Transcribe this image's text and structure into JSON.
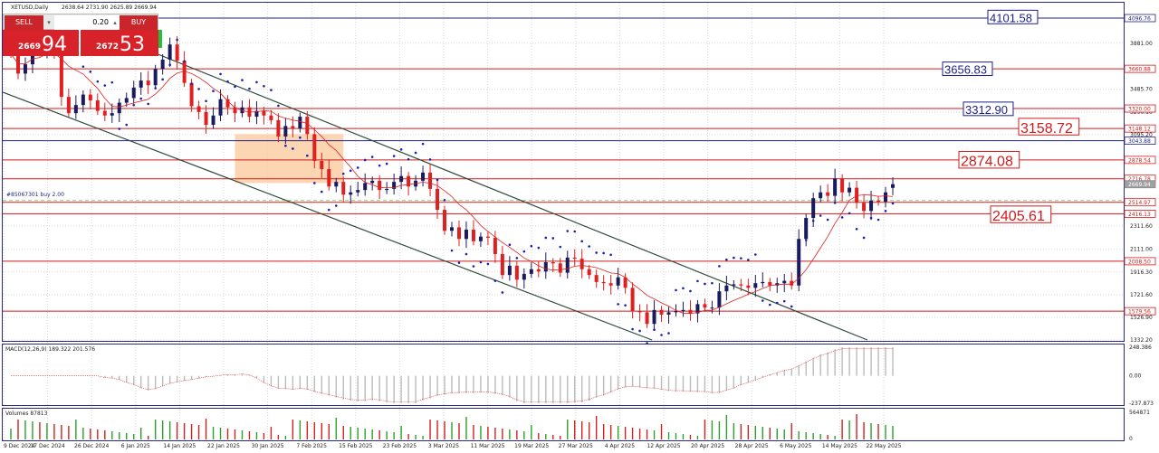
{
  "header": {
    "title": "XETUSD,Daily",
    "ohlc": "2638.64 2731.90 2625.89 2669.94",
    "order_label": "#85067301 buy 2.00"
  },
  "trade_panel": {
    "sell_label": "SELL",
    "buy_label": "BUY",
    "volume": "0.20",
    "sell_small": "2669",
    "sell_big": "94",
    "buy_small": "2672",
    "buy_big": "53",
    "down_arrow": "▾",
    "up_arrow": "▴"
  },
  "colors": {
    "bull": "#1a1a5e",
    "bear": "#e02020",
    "sar": "#1a1fb0",
    "ma": "#e02020",
    "channel": "#2e4c3a",
    "red_line": "#d21a1a",
    "navy_line": "#1c1f8a",
    "zone": "#fbc79a",
    "macd_hist": "#bbbbbb"
  },
  "price_axis": {
    "ticks": [
      "4096.76",
      "3881.00",
      "3485.70",
      "3290.10",
      "3095.20",
      "2311.60",
      "2111.00",
      "1916.30",
      "1721.60",
      "1526.90",
      "1332.20"
    ],
    "level_tags": [
      {
        "label": "4096.76",
        "kind": "navy",
        "price": 4096.76
      },
      {
        "label": "3660.88",
        "kind": "red",
        "price": 3660.88
      },
      {
        "label": "3320.00",
        "kind": "red",
        "price": 3320.0
      },
      {
        "label": "3148.12",
        "kind": "red",
        "price": 3148.12
      },
      {
        "label": "3043.88",
        "kind": "navy",
        "price": 3043.88
      },
      {
        "label": "2878.54",
        "kind": "red",
        "price": 2878.54
      },
      {
        "label": "2716.78",
        "kind": "red",
        "price": 2716.78
      },
      {
        "label": "2669.94",
        "kind": "gray",
        "price": 2669.94
      },
      {
        "label": "2514.97",
        "kind": "red",
        "price": 2514.97
      },
      {
        "label": "2416.13",
        "kind": "red",
        "price": 2416.13
      },
      {
        "label": "2008.50",
        "kind": "red",
        "price": 2008.5
      },
      {
        "label": "1579.56",
        "kind": "red",
        "price": 1579.56
      }
    ]
  },
  "level_labels": [
    {
      "text": "4101.58",
      "color": "navy",
      "price": 4101.58
    },
    {
      "text": "3656.83",
      "color": "navy",
      "price": 3656.83
    },
    {
      "text": "3312.90",
      "color": "navy",
      "price": 3312.9
    },
    {
      "text": "3158.72",
      "color": "red",
      "price": 3158.72
    },
    {
      "text": "2874.08",
      "color": "red",
      "price": 2874.08
    },
    {
      "text": "2405.61",
      "color": "red",
      "price": 2405.61
    }
  ],
  "date_axis": [
    "9 Dec 2024",
    "17 Dec 2024",
    "26 Dec 2024",
    "6 Jan 2025",
    "14 Jan 2025",
    "22 Jan 2025",
    "30 Jan 2025",
    "7 Feb 2025",
    "15 Feb 2025",
    "23 Feb 2025",
    "3 Mar 2025",
    "11 Mar 2025",
    "19 Mar 2025",
    "27 Mar 2025",
    "4 Apr 2025",
    "12 Apr 2025",
    "20 Apr 2025",
    "28 Apr 2025",
    "6 May 2025",
    "14 May 2025",
    "22 May 2025"
  ],
  "macd": {
    "label": "MACD(12,26,9) 189.322 201.576",
    "ticks": [
      "248.386",
      "0.00",
      "-237.873"
    ]
  },
  "volume": {
    "label": "Volumes 87813",
    "ticks": [
      "564871",
      "0"
    ]
  },
  "chart_data": {
    "type": "candlestick",
    "title": "XETUSD,Daily",
    "ohlc_last": {
      "open": 2638.64,
      "high": 2731.9,
      "low": 2625.89,
      "close": 2669.94
    },
    "closes": [
      3790,
      3620,
      3700,
      3880,
      3800,
      3950,
      3810,
      3420,
      3280,
      3350,
      3440,
      3390,
      3300,
      3260,
      3280,
      3370,
      3410,
      3500,
      3560,
      3520,
      3660,
      3740,
      3870,
      3730,
      3540,
      3340,
      3290,
      3180,
      3260,
      3400,
      3330,
      3280,
      3330,
      3250,
      3300,
      3260,
      3220,
      3080,
      3170,
      3150,
      3250,
      3100,
      2870,
      2800,
      2650,
      2690,
      2580,
      2600,
      2620,
      2680,
      2700,
      2620,
      2630,
      2690,
      2740,
      2650,
      2700,
      2770,
      2630,
      2450,
      2270,
      2300,
      2200,
      2280,
      2180,
      2220,
      2210,
      2070,
      1890,
      1970,
      1850,
      1900,
      1940,
      1920,
      2000,
      1990,
      1910,
      2040,
      2030,
      1940,
      1890,
      1830,
      1820,
      1800,
      1870,
      1780,
      1580,
      1570,
      1470,
      1590,
      1550,
      1570,
      1580,
      1590,
      1560,
      1640,
      1610,
      1610,
      1750,
      1800,
      1810,
      1800,
      1780,
      1820,
      1830,
      1800,
      1820,
      1840,
      1800,
      2200,
      2380,
      2550,
      2600,
      2570,
      2720,
      2600,
      2640,
      2510,
      2440,
      2530,
      2520,
      2600,
      2669.94
    ],
    "ylim": [
      1332.2,
      4096.76
    ],
    "x_labels": [
      "9 Dec 2024",
      "17 Dec 2024",
      "26 Dec 2024",
      "6 Jan 2025",
      "14 Jan 2025",
      "22 Jan 2025",
      "30 Jan 2025",
      "7 Feb 2025",
      "15 Feb 2025",
      "23 Feb 2025",
      "3 Mar 2025",
      "11 Mar 2025",
      "19 Mar 2025",
      "27 Mar 2025",
      "4 Apr 2025",
      "12 Apr 2025",
      "20 Apr 2025",
      "28 Apr 2025",
      "6 May 2025",
      "14 May 2025",
      "22 May 2025"
    ],
    "levels": [
      4101.58,
      3660.88,
      3320.0,
      3148.12,
      3043.88,
      2878.54,
      2716.78,
      2514.97,
      2416.13,
      2008.5,
      1579.56
    ],
    "macd": {
      "value": 189.322,
      "signal": 201.576,
      "ylim": [
        -237.873,
        248.386
      ]
    },
    "volume_last": 87813,
    "volume_max": 564871
  }
}
